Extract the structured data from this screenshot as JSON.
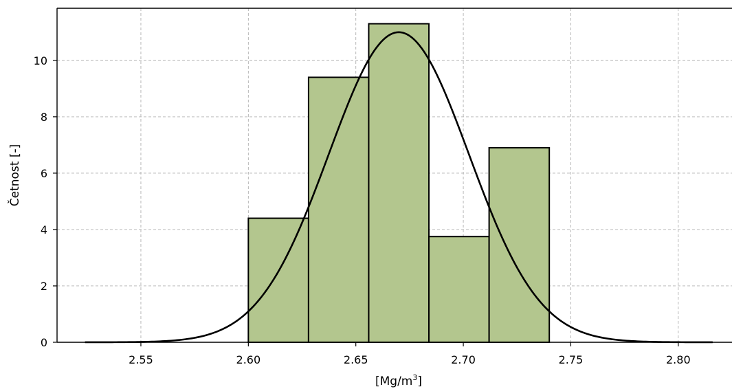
{
  "chart_data": {
    "type": "bar",
    "subtype": "histogram",
    "title": "",
    "xlabel_main": "[Mg/m",
    "xlabel_sup": "3",
    "xlabel_end": "]",
    "ylabel": "Četnost [-]",
    "xlim": [
      2.511,
      2.825
    ],
    "ylim": [
      0,
      11.85
    ],
    "grid": true,
    "x_ticks": [
      {
        "value": 2.55,
        "label": "2.55"
      },
      {
        "value": 2.6,
        "label": "2.60"
      },
      {
        "value": 2.65,
        "label": "2.65"
      },
      {
        "value": 2.7,
        "label": "2.70"
      },
      {
        "value": 2.75,
        "label": "2.75"
      },
      {
        "value": 2.8,
        "label": "2.80"
      }
    ],
    "y_ticks": [
      {
        "value": 0,
        "label": "0"
      },
      {
        "value": 2,
        "label": "2"
      },
      {
        "value": 4,
        "label": "4"
      },
      {
        "value": 6,
        "label": "6"
      },
      {
        "value": 8,
        "label": "8"
      },
      {
        "value": 10,
        "label": "10"
      }
    ],
    "bar_color": "#b3c68e",
    "bins": [
      {
        "start": 2.6,
        "end": 2.628,
        "value": 4.4
      },
      {
        "start": 2.628,
        "end": 2.656,
        "value": 9.4
      },
      {
        "start": 2.656,
        "end": 2.684,
        "value": 11.3
      },
      {
        "start": 2.684,
        "end": 2.712,
        "value": 3.75
      },
      {
        "start": 2.712,
        "end": 2.74,
        "value": 6.9
      }
    ],
    "fit_curve": {
      "type": "normal",
      "mean": 2.67,
      "sd": 0.0326,
      "peak": 11.0,
      "x_range": [
        2.524,
        2.816
      ],
      "color": "#000000"
    }
  }
}
